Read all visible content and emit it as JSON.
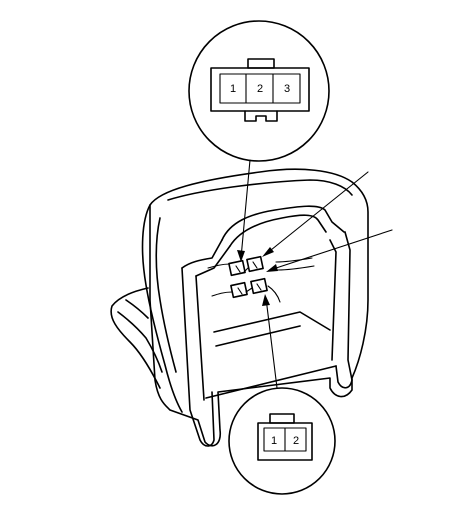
{
  "upper_connector": {
    "pins": [
      "1",
      "2",
      "3"
    ]
  },
  "lower_connector": {
    "pins": [
      "1",
      "2"
    ]
  },
  "colors": {
    "line": "#000000",
    "background": "#ffffff"
  }
}
